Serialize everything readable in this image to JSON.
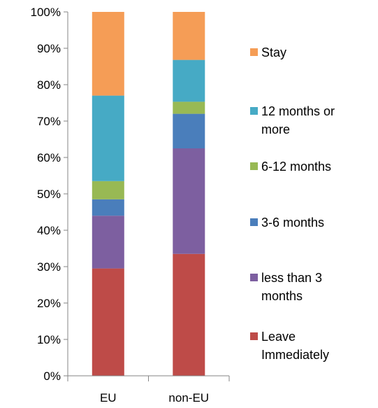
{
  "chart_data": {
    "type": "bar",
    "stacked": true,
    "percent_stacked": true,
    "categories": [
      "EU",
      "non-EU"
    ],
    "series": [
      {
        "name": "Leave Immediately",
        "legend_lines": [
          "Leave",
          "Immediately"
        ],
        "color": "#BE4B48",
        "values": [
          29.5,
          33.5
        ]
      },
      {
        "name": "less than 3 months",
        "legend_lines": [
          "less than 3",
          "months"
        ],
        "color": "#7D5FA0",
        "values": [
          14.5,
          29.0
        ]
      },
      {
        "name": "3-6 months",
        "legend_lines": [
          "3-6 months"
        ],
        "color": "#4A7EBB",
        "values": [
          4.5,
          9.5
        ]
      },
      {
        "name": "6-12 months",
        "legend_lines": [
          "6-12 months"
        ],
        "color": "#98B954",
        "values": [
          5.0,
          3.3
        ]
      },
      {
        "name": "12 months or more",
        "legend_lines": [
          "12 months or",
          "more"
        ],
        "color": "#46AAC5",
        "values": [
          23.5,
          11.5
        ]
      },
      {
        "name": "Stay",
        "legend_lines": [
          "Stay"
        ],
        "color": "#F59D56",
        "values": [
          23.0,
          13.2
        ]
      }
    ],
    "ylim": [
      0,
      100
    ],
    "yticks": [
      "0%",
      "10%",
      "20%",
      "30%",
      "40%",
      "50%",
      "60%",
      "70%",
      "80%",
      "90%",
      "100%"
    ],
    "grid": false,
    "legend_position": "right",
    "title": "",
    "xlabel": "",
    "ylabel": ""
  }
}
